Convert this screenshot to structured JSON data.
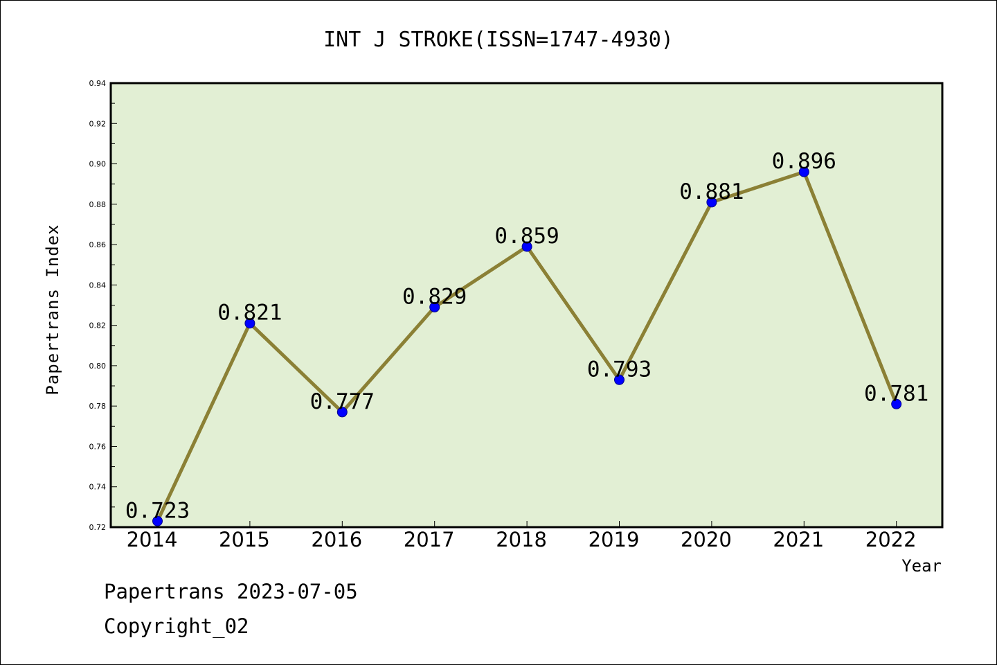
{
  "chart_data": {
    "type": "line",
    "title": "INT J STROKE(ISSN=1747-4930)",
    "xlabel": "Year",
    "ylabel": "Papertrans Index",
    "categories": [
      "2014",
      "2015",
      "2016",
      "2017",
      "2018",
      "2019",
      "2020",
      "2021",
      "2022"
    ],
    "series": [
      {
        "values": [
          0.723,
          0.821,
          0.777,
          0.829,
          0.859,
          0.793,
          0.881,
          0.896,
          0.781
        ],
        "labels": [
          "0.723",
          "0.821",
          "0.777",
          "0.829",
          "0.859",
          "0.793",
          "0.881",
          "0.896",
          "0.781"
        ]
      }
    ],
    "ylim": [
      0.72,
      0.94
    ],
    "yticks": [
      "0.72",
      "0.74",
      "0.76",
      "0.78",
      "0.80",
      "0.82",
      "0.84",
      "0.86",
      "0.88",
      "0.90",
      "0.92",
      "0.94"
    ],
    "grid": false,
    "legend": "none",
    "colors": {
      "plot_background": "#e2efd4",
      "line": "#8b8035",
      "marker": "#0000ff",
      "marker_edge": "#00008b"
    }
  },
  "footer": {
    "line1": "Papertrans 2023-07-05",
    "line2": "Copyright_02"
  }
}
